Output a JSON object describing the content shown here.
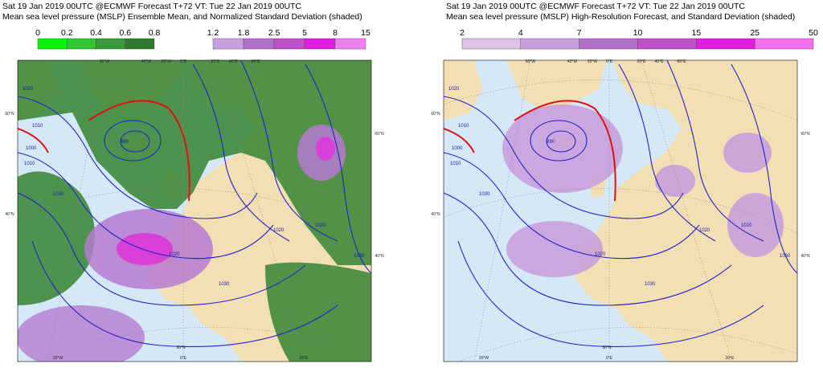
{
  "left": {
    "title_line1": "Sat 19 Jan 2019 00UTC @ECMWF Forecast T+72 VT: Tue 22 Jan 2019 00UTC",
    "title_line2": "Mean sea level pressure (MSLP) Ensemble Mean, and Normalized Standard Deviation (shaded)",
    "colorbar_green": [
      "0",
      "0.2",
      "0.4",
      "0.6",
      "0.8"
    ],
    "colorbar_purple": [
      "1.2",
      "1.8",
      "2.5",
      "5",
      "8",
      "15"
    ],
    "grid_labels": [
      "60°W",
      "40°W",
      "20°W",
      "0°E",
      "20°E",
      "40°E",
      "60°E",
      "60°N",
      "40°N",
      "60°N",
      "40°N",
      "30°N",
      "20°W",
      "0°E",
      "20°E"
    ],
    "isobar_labels": [
      "1020",
      "1010",
      "1000",
      "1010",
      "1030",
      "990",
      "1020",
      "1030",
      "1020",
      "1020",
      "1030"
    ]
  },
  "right": {
    "title_line1": "Sat 19 Jan 2019 00UTC @ECMWF Forecast T+72 VT: Tue 22 Jan 2019 00UTC",
    "title_line2": "Mean sea level pressure (MSLP) High-Resolution Forecast, and Standard Deviation (shaded)",
    "colorbar": [
      "2",
      "4",
      "7",
      "10",
      "15",
      "25",
      "50"
    ],
    "grid_labels": [
      "60°W",
      "40°W",
      "20°W",
      "0°E",
      "20°E",
      "40°E",
      "60°E",
      "60°N",
      "40°N",
      "60°N",
      "40°N",
      "30°N",
      "20°W",
      "0°E",
      "20°E"
    ],
    "isobar_labels": [
      "1020",
      "1010",
      "1000",
      "1010",
      "1030",
      "990",
      "1020",
      "1030",
      "1020",
      "1020",
      "1030"
    ]
  }
}
